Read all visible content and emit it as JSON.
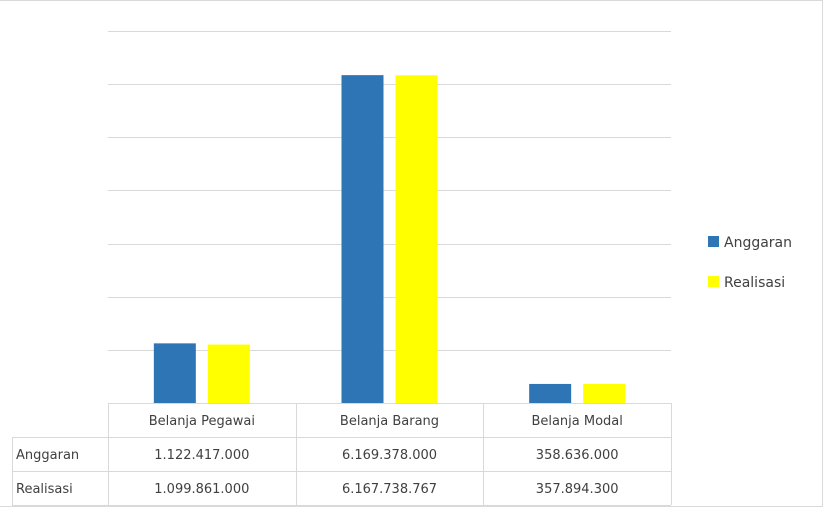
{
  "chart_data": {
    "type": "bar",
    "categories": [
      "Belanja Pegawai",
      "Belanja Barang",
      "Belanja Modal"
    ],
    "series": [
      {
        "name": "Anggaran",
        "color": "#2e75b6",
        "values": [
          1122417000,
          6169378000,
          358636000
        ],
        "labels": [
          "1.122.417.000",
          "6.169.378.000",
          "358.636.000"
        ]
      },
      {
        "name": "Realisasi",
        "color": "#ffff00",
        "values": [
          1099861000,
          6167738767,
          357894300
        ],
        "labels": [
          "1.099.861.000",
          "6.167.738.767",
          "357.894.300"
        ]
      }
    ],
    "ylim": [
      0,
      7000000000
    ],
    "grid": true,
    "legend_position": "right",
    "has_data_table": true
  }
}
